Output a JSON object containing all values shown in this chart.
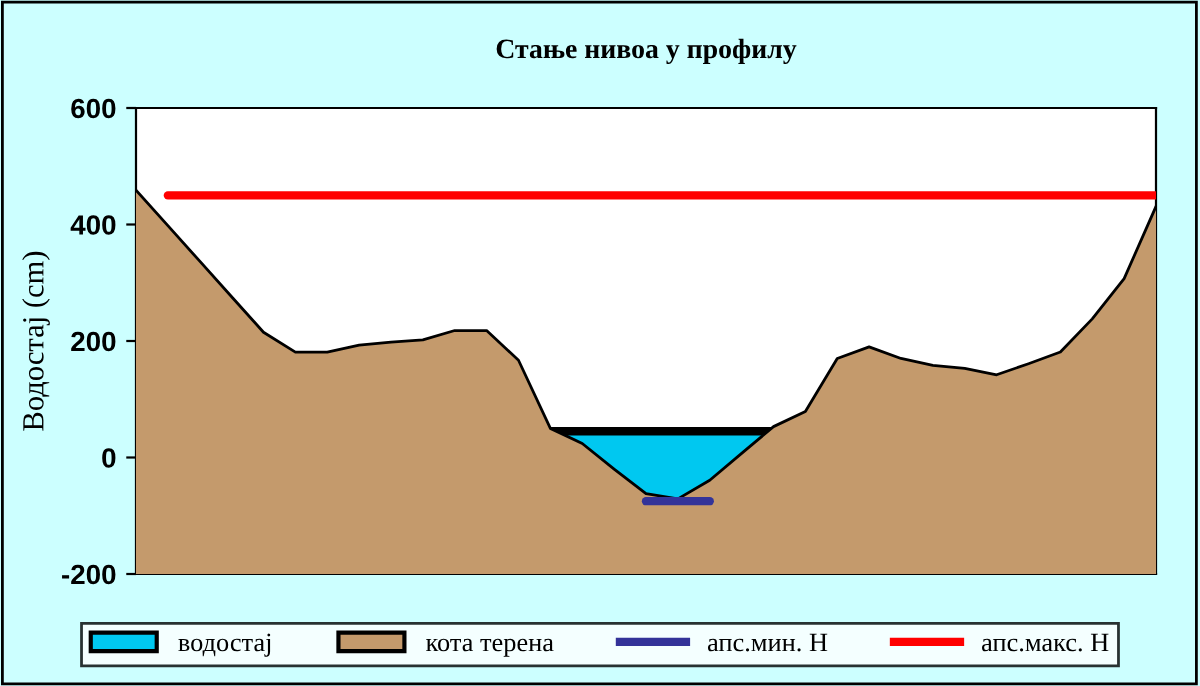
{
  "chart_data": {
    "type": "area",
    "title": "Стање нивоа у профилу",
    "ylabel": "Водостај (cm)",
    "categories": [
      null,
      null,
      null,
      null,
      null,
      null,
      null,
      null,
      null,
      null,
      null,
      null,
      null,
      null,
      null,
      null,
      null,
      null,
      null,
      null,
      null,
      null,
      null,
      null,
      null,
      null,
      null,
      null,
      null,
      null,
      null,
      null,
      null
    ],
    "series": [
      {
        "name": "водостај",
        "color": "#00c8f0",
        "values": [
          null,
          null,
          null,
          null,
          null,
          null,
          null,
          null,
          null,
          null,
          null,
          null,
          null,
          45,
          45,
          45,
          45,
          45,
          45,
          45,
          45,
          null,
          null,
          null,
          null,
          null,
          null,
          null,
          null,
          null,
          null,
          null,
          null
        ]
      },
      {
        "name": "кота терена",
        "color": "#c49a6c",
        "values": [
          459,
          398,
          337,
          276,
          215,
          181,
          181,
          193,
          198,
          202,
          218,
          218,
          167,
          50,
          24,
          -20,
          -62,
          -71,
          -39,
          7,
          53,
          79,
          170,
          190,
          170,
          158,
          153,
          142,
          161,
          181,
          238,
          307,
          431
        ]
      },
      {
        "name": "апс.мин. Н",
        "type": "line",
        "color": "#333399",
        "values": [
          null,
          null,
          null,
          null,
          null,
          null,
          null,
          null,
          null,
          null,
          null,
          null,
          null,
          null,
          null,
          null,
          -75,
          -75,
          -75,
          null,
          null,
          null,
          null,
          null,
          null,
          null,
          null,
          null,
          null,
          null,
          null,
          null,
          null
        ]
      },
      {
        "name": "апс.макс. Н",
        "type": "line",
        "color": "#ff0000",
        "values": [
          null,
          450,
          450,
          450,
          450,
          450,
          450,
          450,
          450,
          450,
          450,
          450,
          450,
          450,
          450,
          450,
          450,
          450,
          450,
          450,
          450,
          450,
          450,
          450,
          450,
          450,
          450,
          450,
          450,
          450,
          450,
          450,
          450
        ]
      }
    ],
    "ylim": [
      -200,
      600
    ],
    "yticks": [
      -200,
      0,
      200,
      400,
      600
    ],
    "tick_labels": "y",
    "legend": "bottom",
    "grid": false
  }
}
